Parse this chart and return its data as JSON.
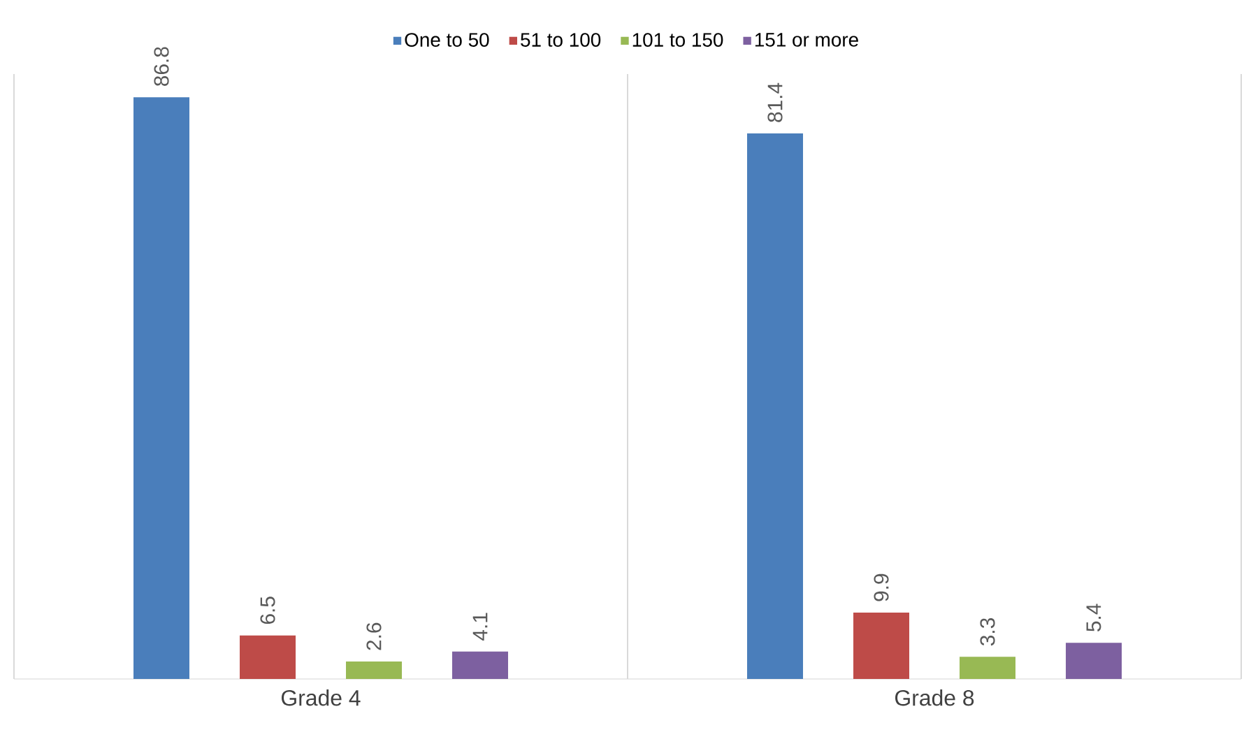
{
  "chart_data": {
    "type": "bar",
    "categories": [
      "Grade 4",
      "Grade 8"
    ],
    "series": [
      {
        "name": "One to 50",
        "color": "#4a7ebb",
        "values": [
          86.8,
          81.4
        ]
      },
      {
        "name": "51 to 100",
        "color": "#be4b48",
        "values": [
          6.5,
          9.9
        ]
      },
      {
        "name": "101 to 150",
        "color": "#98b954",
        "values": [
          2.6,
          3.3
        ]
      },
      {
        "name": "151 or more",
        "color": "#7d60a0",
        "values": [
          4.1,
          5.4
        ]
      }
    ],
    "data_labels": true,
    "legend": "top"
  }
}
